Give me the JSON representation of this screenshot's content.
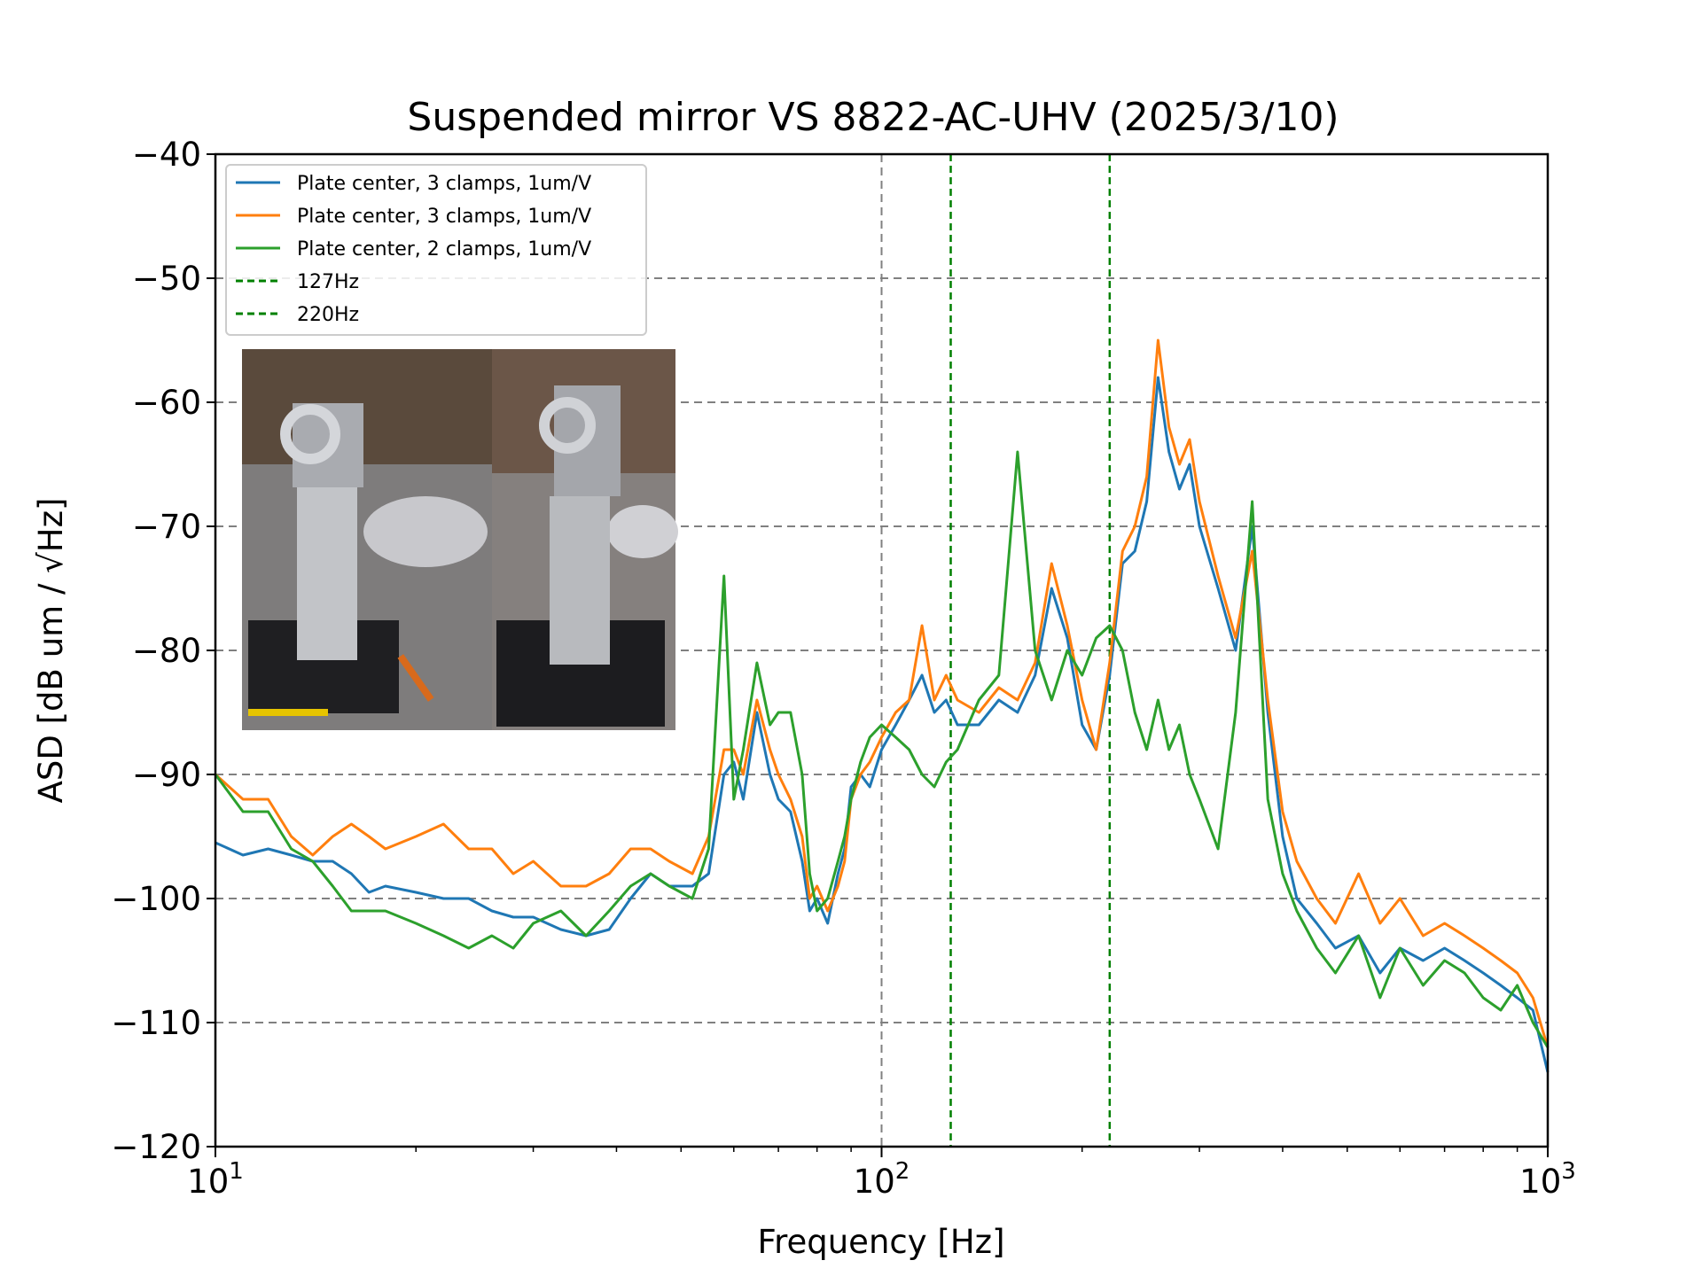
{
  "chart_data": {
    "type": "line",
    "title": "Suspended mirror VS 8822-AC-UHV (2025/3/10)",
    "xlabel": "Frequency [Hz]",
    "ylabel": "ASD [dB um / √Hz]",
    "xscale": "log",
    "xlim": [
      10,
      1000
    ],
    "ylim": [
      -120,
      -40
    ],
    "xticks": [
      10,
      100,
      1000
    ],
    "xtick_labels": [
      {
        "base": "10",
        "exp": "1"
      },
      {
        "base": "10",
        "exp": "2"
      },
      {
        "base": "10",
        "exp": "3"
      }
    ],
    "yticks": [
      -120,
      -110,
      -100,
      -90,
      -80,
      -70,
      -60,
      -50,
      -40
    ],
    "ytick_labels": [
      "−120",
      "−110",
      "−100",
      "−90",
      "−80",
      "−70",
      "−60",
      "−50",
      "−40"
    ],
    "grid": "dashed horizontal lines at y ticks, dashed vertical line at x=100",
    "legend_position": "top-left",
    "vlines": [
      {
        "name": "127Hz",
        "x": 127,
        "color": "#008000"
      },
      {
        "name": "220Hz",
        "x": 220,
        "color": "#008000"
      }
    ],
    "inset_image": "photo of suspended mirror mounts on optical table (two views)",
    "series": [
      {
        "name": "Plate center, 3 clamps, 1um/V",
        "color": "#1f77b4",
        "x": [
          10,
          11,
          12,
          13,
          14,
          15,
          16,
          17,
          18,
          20,
          22,
          24,
          26,
          28,
          30,
          33,
          36,
          39,
          42,
          45,
          48,
          52,
          55,
          58,
          60,
          62,
          65,
          68,
          70,
          73,
          76,
          78,
          80,
          83,
          86,
          88,
          90,
          93,
          96,
          100,
          105,
          110,
          115,
          120,
          125,
          130,
          140,
          150,
          160,
          170,
          180,
          190,
          200,
          210,
          220,
          230,
          240,
          250,
          260,
          270,
          280,
          290,
          300,
          320,
          340,
          360,
          380,
          400,
          420,
          450,
          480,
          520,
          560,
          600,
          650,
          700,
          750,
          800,
          850,
          900,
          950,
          1000
        ],
        "y": [
          -95.5,
          -96.5,
          -96.0,
          -96.5,
          -97.0,
          -97.0,
          -98.0,
          -99.5,
          -99.0,
          -99.5,
          -100.0,
          -100.0,
          -101.0,
          -101.5,
          -101.5,
          -102.5,
          -103.0,
          -102.5,
          -100.0,
          -98.0,
          -99.0,
          -99.0,
          -98.0,
          -90.0,
          -89.0,
          -92.0,
          -85.0,
          -90.0,
          -92.0,
          -93.0,
          -97.0,
          -101.0,
          -100.0,
          -102.0,
          -98.0,
          -96.0,
          -91.0,
          -90.0,
          -91.0,
          -88.0,
          -86.0,
          -84.0,
          -82.0,
          -85.0,
          -84.0,
          -86.0,
          -86.0,
          -84.0,
          -85.0,
          -82.0,
          -75.0,
          -79.0,
          -86.0,
          -88.0,
          -82.0,
          -73.0,
          -72.0,
          -68.0,
          -58.0,
          -64.0,
          -67.0,
          -65.0,
          -70.0,
          -75.0,
          -80.0,
          -70.0,
          -85.0,
          -95.0,
          -100.0,
          -102.0,
          -104.0,
          -103.0,
          -106.0,
          -104.0,
          -105.0,
          -104.0,
          -105.0,
          -106.0,
          -107.0,
          -108.0,
          -109.0,
          -114.0
        ]
      },
      {
        "name": "Plate center, 3 clamps, 1um/V",
        "color": "#ff7f0e",
        "x": [
          10,
          11,
          12,
          13,
          14,
          15,
          16,
          17,
          18,
          20,
          22,
          24,
          26,
          28,
          30,
          33,
          36,
          39,
          42,
          45,
          48,
          52,
          55,
          58,
          60,
          62,
          65,
          68,
          70,
          73,
          76,
          78,
          80,
          83,
          86,
          88,
          90,
          93,
          96,
          100,
          105,
          110,
          115,
          120,
          125,
          130,
          140,
          150,
          160,
          170,
          180,
          190,
          200,
          210,
          220,
          230,
          240,
          250,
          260,
          270,
          280,
          290,
          300,
          320,
          340,
          360,
          380,
          400,
          420,
          450,
          480,
          520,
          560,
          600,
          650,
          700,
          750,
          800,
          850,
          900,
          950,
          1000
        ],
        "y": [
          -90.0,
          -92.0,
          -92.0,
          -95.0,
          -96.5,
          -95.0,
          -94.0,
          -95.0,
          -96.0,
          -95.0,
          -94.0,
          -96.0,
          -96.0,
          -98.0,
          -97.0,
          -99.0,
          -99.0,
          -98.0,
          -96.0,
          -96.0,
          -97.0,
          -98.0,
          -95.0,
          -88.0,
          -88.0,
          -90.0,
          -84.0,
          -88.0,
          -90.0,
          -92.0,
          -95.0,
          -100.0,
          -99.0,
          -101.0,
          -99.0,
          -97.0,
          -92.0,
          -90.0,
          -89.0,
          -87.0,
          -85.0,
          -84.0,
          -78.0,
          -84.0,
          -82.0,
          -84.0,
          -85.0,
          -83.0,
          -84.0,
          -81.0,
          -73.0,
          -78.0,
          -84.0,
          -88.0,
          -81.0,
          -72.0,
          -70.0,
          -66.0,
          -55.0,
          -62.0,
          -65.0,
          -63.0,
          -68.0,
          -74.0,
          -79.0,
          -72.0,
          -84.0,
          -93.0,
          -97.0,
          -100.0,
          -102.0,
          -98.0,
          -102.0,
          -100.0,
          -103.0,
          -102.0,
          -103.0,
          -104.0,
          -105.0,
          -106.0,
          -108.0,
          -112.0
        ]
      },
      {
        "name": "Plate center, 2 clamps, 1um/V",
        "color": "#2ca02c",
        "x": [
          10,
          11,
          12,
          13,
          14,
          15,
          16,
          17,
          18,
          20,
          22,
          24,
          26,
          28,
          30,
          33,
          36,
          39,
          42,
          45,
          48,
          52,
          55,
          58,
          60,
          62,
          65,
          68,
          70,
          73,
          76,
          78,
          80,
          83,
          86,
          88,
          90,
          93,
          96,
          100,
          105,
          110,
          115,
          120,
          125,
          130,
          140,
          150,
          160,
          170,
          180,
          190,
          200,
          210,
          220,
          230,
          240,
          250,
          260,
          270,
          280,
          290,
          300,
          320,
          340,
          360,
          380,
          400,
          420,
          450,
          480,
          520,
          560,
          600,
          650,
          700,
          750,
          800,
          850,
          900,
          950,
          1000
        ],
        "y": [
          -90.0,
          -93.0,
          -93.0,
          -96.0,
          -97.0,
          -99.0,
          -101.0,
          -101.0,
          -101.0,
          -102.0,
          -103.0,
          -104.0,
          -103.0,
          -104.0,
          -102.0,
          -101.0,
          -103.0,
          -101.0,
          -99.0,
          -98.0,
          -99.0,
          -100.0,
          -96.0,
          -74.0,
          -92.0,
          -88.0,
          -81.0,
          -86.0,
          -85.0,
          -85.0,
          -90.0,
          -98.0,
          -101.0,
          -100.0,
          -97.0,
          -95.0,
          -92.0,
          -89.0,
          -87.0,
          -86.0,
          -87.0,
          -88.0,
          -90.0,
          -91.0,
          -89.0,
          -88.0,
          -84.0,
          -82.0,
          -64.0,
          -80.0,
          -84.0,
          -80.0,
          -82.0,
          -79.0,
          -78.0,
          -80.0,
          -85.0,
          -88.0,
          -84.0,
          -88.0,
          -86.0,
          -90.0,
          -92.0,
          -96.0,
          -85.0,
          -68.0,
          -92.0,
          -98.0,
          -101.0,
          -104.0,
          -106.0,
          -103.0,
          -108.0,
          -104.0,
          -107.0,
          -105.0,
          -106.0,
          -108.0,
          -109.0,
          -107.0,
          -110.0,
          -112.0
        ]
      }
    ]
  }
}
